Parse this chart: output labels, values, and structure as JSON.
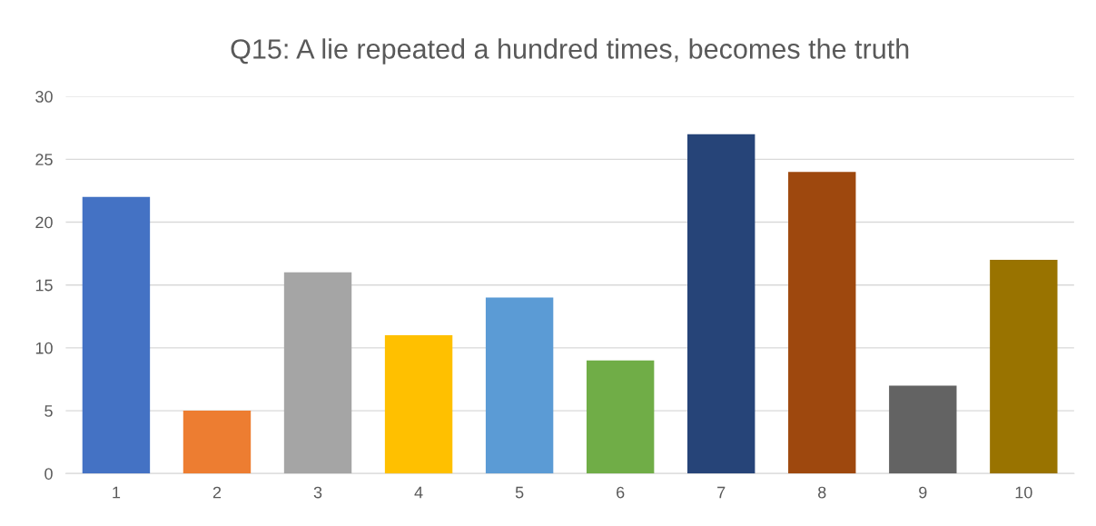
{
  "chart_data": {
    "type": "bar",
    "title": "Q15: A lie repeated a hundred times, becomes the truth",
    "categories": [
      "1",
      "2",
      "3",
      "4",
      "5",
      "6",
      "7",
      "8",
      "9",
      "10"
    ],
    "values": [
      22,
      5,
      16,
      11,
      14,
      9,
      27,
      24,
      7,
      17
    ],
    "colors": [
      "#4472c4",
      "#ed7d31",
      "#a5a5a5",
      "#ffc000",
      "#5b9bd5",
      "#70ad47",
      "#264478",
      "#9e480e",
      "#636363",
      "#997300"
    ],
    "ylim": [
      0,
      30
    ],
    "yticks": [
      0,
      5,
      10,
      15,
      20,
      25,
      30
    ],
    "grid": "y",
    "legend": false
  }
}
